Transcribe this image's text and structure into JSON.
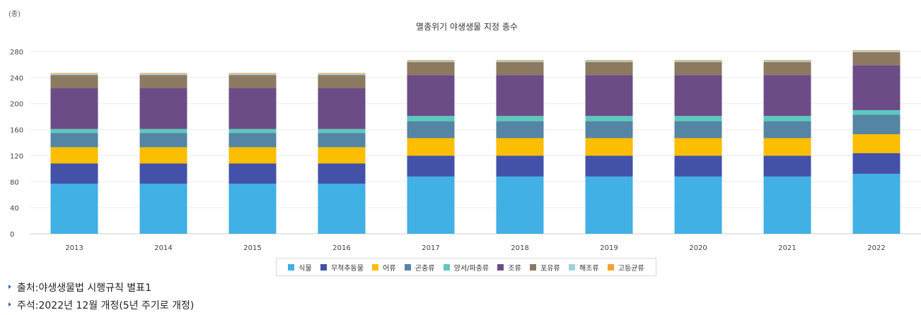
{
  "chart_data": {
    "type": "bar",
    "stacked": true,
    "title": "멸종위기 야생생물 지정 종수",
    "unit_label": "(종)",
    "categories": [
      "2013",
      "2014",
      "2015",
      "2016",
      "2017",
      "2018",
      "2019",
      "2020",
      "2021",
      "2022"
    ],
    "ylim": [
      0,
      280
    ],
    "yticks": [
      0,
      40,
      80,
      120,
      160,
      200,
      240,
      280
    ],
    "grid": true,
    "legend_position": "bottom",
    "series": [
      {
        "name": "식물",
        "color": "#41b0e4",
        "values": [
          77,
          77,
          77,
          77,
          88,
          88,
          88,
          88,
          88,
          92
        ]
      },
      {
        "name": "무척추동물",
        "color": "#4352a8",
        "values": [
          31,
          31,
          31,
          31,
          32,
          32,
          32,
          32,
          32,
          32
        ]
      },
      {
        "name": "어류",
        "color": "#fbbe00",
        "values": [
          25,
          25,
          25,
          25,
          27,
          27,
          27,
          27,
          27,
          29
        ]
      },
      {
        "name": "곤충류",
        "color": "#5585a4",
        "values": [
          22,
          22,
          22,
          22,
          26,
          26,
          26,
          26,
          26,
          30
        ]
      },
      {
        "name": "양서/파충류",
        "color": "#5cc8bd",
        "values": [
          6,
          6,
          6,
          6,
          8,
          8,
          8,
          8,
          8,
          7
        ]
      },
      {
        "name": "조류",
        "color": "#6c4c87",
        "values": [
          63,
          63,
          63,
          63,
          63,
          63,
          63,
          63,
          63,
          69
        ]
      },
      {
        "name": "포유류",
        "color": "#8c7960",
        "values": [
          20,
          20,
          20,
          20,
          20,
          20,
          20,
          20,
          20,
          20
        ]
      },
      {
        "name": "해조류",
        "color": "#9fd1df",
        "values": [
          2,
          2,
          2,
          2,
          2,
          2,
          2,
          2,
          2,
          2
        ]
      },
      {
        "name": "고등균류",
        "color": "#f6a02c",
        "values": [
          1,
          1,
          1,
          1,
          1,
          1,
          1,
          1,
          1,
          1
        ]
      }
    ]
  },
  "notes": {
    "source_label": "출처",
    "source_text": "야생생물법 시행규칙 별표1",
    "note_label": "주석",
    "note_text": "2022년 12월 개정(5년 주기로 개정)",
    "separator": " : "
  }
}
